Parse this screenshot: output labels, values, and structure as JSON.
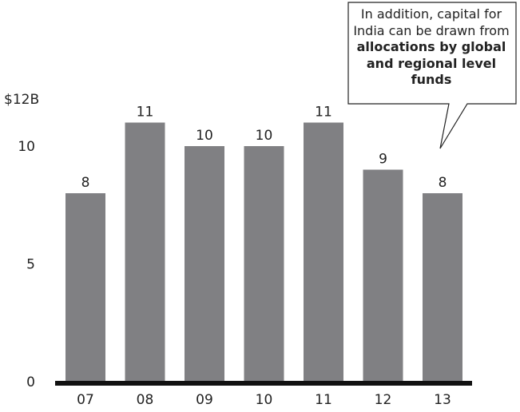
{
  "chart_data": {
    "type": "bar",
    "categories": [
      "07",
      "08",
      "09",
      "10",
      "11",
      "12",
      "13"
    ],
    "values": [
      8,
      11,
      10,
      10,
      11,
      9,
      8
    ],
    "value_labels": [
      "8",
      "11",
      "10",
      "10",
      "11",
      "9",
      "8"
    ],
    "y_ticks": [
      {
        "value": 0,
        "label": "0"
      },
      {
        "value": 5,
        "label": "5"
      },
      {
        "value": 10,
        "label": "10"
      },
      {
        "value": 12,
        "label": "$12B"
      }
    ],
    "ylim": [
      0,
      12
    ],
    "grid": false,
    "legend": "none",
    "title": "",
    "xlabel": "",
    "ylabel": "",
    "colors": {
      "bar": "#808083",
      "axis": "#111111",
      "text": "#222222"
    },
    "annotation": {
      "text_normal_1": "In addition, capital for India can be drawn from ",
      "text_bold": "allocations by global and regional level funds",
      "points_to": "13"
    }
  }
}
